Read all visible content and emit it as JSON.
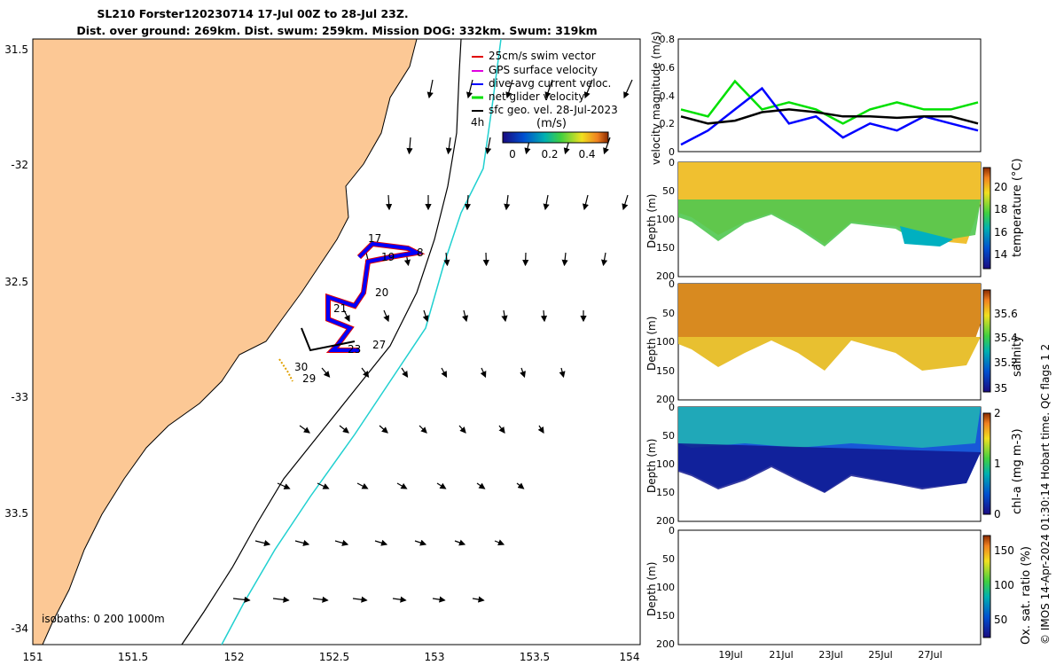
{
  "title_line1": "SL210 Forster120230714 17-Jul 00Z to 28-Jul 23Z.",
  "title_line2": "Dist. over ground: 269km. Dist. swum: 259km. Mission DOG: 332km. Swum: 319km",
  "map": {
    "lon_ticks": [
      "151",
      "151.5",
      "152",
      "152.5",
      "153",
      "153.5",
      "154"
    ],
    "lat_ticks": [
      "31.5",
      "-32",
      "32.5",
      "-33",
      "33.5",
      "-34"
    ],
    "legend": [
      "25cm/s swim vector",
      "GPS surface velocity",
      "dive-avg current veloc.",
      "net glider velocity",
      "sfc geo. vel. 28-Jul-2023"
    ],
    "legend_colors": [
      "#e00000",
      "#e000e0",
      "#0000ff",
      "#00e000",
      "#000000"
    ],
    "colorbar_label": "(m/s)",
    "colorbar_ticks": [
      "0",
      "0.2",
      "0.4"
    ],
    "hour_label": "4h",
    "isobaths_label": "isobaths: 0   200  1000m",
    "day_labels": [
      "17",
      "19",
      "8",
      "20",
      "21",
      "27",
      "23",
      "30",
      "29"
    ]
  },
  "panels": {
    "velocity": {
      "ylabel": "velocity magnitude (m/s)",
      "yticks": [
        "0.8",
        "0.6",
        "0.4",
        "0.2",
        "0"
      ]
    },
    "temperature": {
      "ylabel": "Depth (m)",
      "yticks": [
        "0",
        "50",
        "100",
        "150",
        "200"
      ],
      "cbar_label": "temperature (°C)",
      "cbar_ticks": [
        "20",
        "18",
        "16",
        "14"
      ]
    },
    "salinity": {
      "ylabel": "Depth (m)",
      "yticks": [
        "0",
        "50",
        "100",
        "150",
        "200"
      ],
      "cbar_label": "salinity",
      "cbar_ticks": [
        "35.6",
        "35.4",
        "35.2",
        "35"
      ]
    },
    "chla": {
      "ylabel": "Depth (m)",
      "yticks": [
        "0",
        "50",
        "100",
        "150",
        "200"
      ],
      "cbar_label": "chl-a (mg m-3)",
      "cbar_ticks": [
        "2",
        "1",
        "0"
      ]
    },
    "oxygen": {
      "ylabel": "Depth (m)",
      "yticks": [
        "0",
        "50",
        "100",
        "150",
        "200"
      ],
      "cbar_label": "Ox. sat. ratio (%)",
      "cbar_ticks": [
        "150",
        "100",
        "50"
      ]
    },
    "date_ticks": [
      "19Jul",
      "21Jul",
      "23Jul",
      "25Jul",
      "27Jul"
    ]
  },
  "footer": "© IMOS 14-Apr-2024 01:30:14 Hobart time. QC flags 1  2",
  "chart_data": [
    {
      "type": "line",
      "title": "velocity magnitude",
      "ylabel": "velocity magnitude (m/s)",
      "ylim": [
        0,
        0.8
      ],
      "x": [
        "17Jul",
        "18Jul",
        "19Jul",
        "20Jul",
        "21Jul",
        "22Jul",
        "23Jul",
        "24Jul",
        "25Jul",
        "26Jul",
        "27Jul",
        "28Jul"
      ],
      "series": [
        {
          "name": "net glider velocity",
          "color": "#00e000",
          "values": [
            0.3,
            0.25,
            0.5,
            0.3,
            0.35,
            0.3,
            0.2,
            0.3,
            0.35,
            0.3,
            0.3,
            0.35
          ]
        },
        {
          "name": "dive-avg current veloc.",
          "color": "#0000ff",
          "values": [
            0.05,
            0.15,
            0.3,
            0.45,
            0.2,
            0.25,
            0.1,
            0.2,
            0.15,
            0.25,
            0.2,
            0.15
          ]
        },
        {
          "name": "sfc geo. vel.",
          "color": "#000000",
          "values": [
            0.25,
            0.2,
            0.22,
            0.28,
            0.3,
            0.28,
            0.25,
            0.25,
            0.24,
            0.25,
            0.25,
            0.2
          ]
        }
      ]
    },
    {
      "type": "heatmap",
      "title": "temperature",
      "ylabel": "Depth (m)",
      "ylim": [
        200,
        0
      ],
      "clim": [
        13,
        21
      ]
    },
    {
      "type": "heatmap",
      "title": "salinity",
      "ylabel": "Depth (m)",
      "ylim": [
        200,
        0
      ],
      "clim": [
        35,
        35.7
      ]
    },
    {
      "type": "heatmap",
      "title": "chl-a",
      "ylabel": "Depth (m)",
      "ylim": [
        200,
        0
      ],
      "clim": [
        0,
        2
      ]
    },
    {
      "type": "heatmap",
      "title": "Ox. sat. ratio",
      "ylabel": "Depth (m)",
      "ylim": [
        200,
        0
      ],
      "clim": [
        30,
        170
      ]
    }
  ]
}
